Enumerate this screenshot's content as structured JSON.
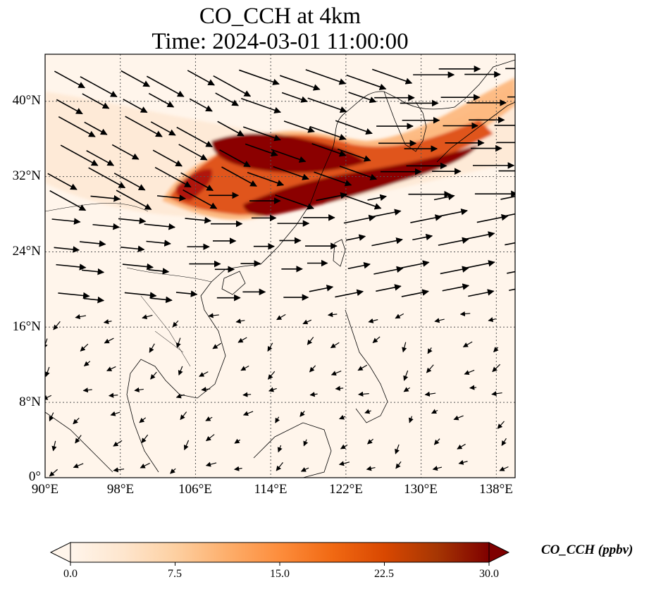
{
  "title": {
    "line1": "CO_CCH at 4km",
    "line2": "Time: 2024-03-01 11:00:00"
  },
  "map": {
    "extent_lon": [
      90,
      140
    ],
    "extent_lat": [
      0,
      45
    ],
    "lon_ticks": [
      "90°E",
      "98°E",
      "106°E",
      "114°E",
      "122°E",
      "130°E",
      "138°E"
    ],
    "lat_ticks": [
      "0°",
      "8°N",
      "16°N",
      "24°N",
      "32°N",
      "40°N"
    ],
    "lon_tick_values": [
      90,
      98,
      106,
      114,
      122,
      130,
      138
    ],
    "lat_tick_values": [
      0,
      8,
      16,
      24,
      32,
      40
    ],
    "gridlines": "dotted",
    "field": "CO_CCH",
    "background_color": "#fff5eb",
    "plume_color": "#8b0000",
    "wind_vector_color": "#000000"
  },
  "colorbar": {
    "label": "CO_CCH (ppbv)",
    "ticks": [
      "0.0",
      "7.5",
      "15.0",
      "22.5",
      "30.0"
    ],
    "tick_values": [
      0,
      7.5,
      15,
      22.5,
      30
    ],
    "range": [
      0,
      30
    ],
    "extend": "both",
    "colormap": [
      "#fff5eb",
      "#fee6ce",
      "#fdd0a2",
      "#fdae6b",
      "#fd8d3c",
      "#f16913",
      "#d94801",
      "#a63603",
      "#7f0000"
    ]
  }
}
